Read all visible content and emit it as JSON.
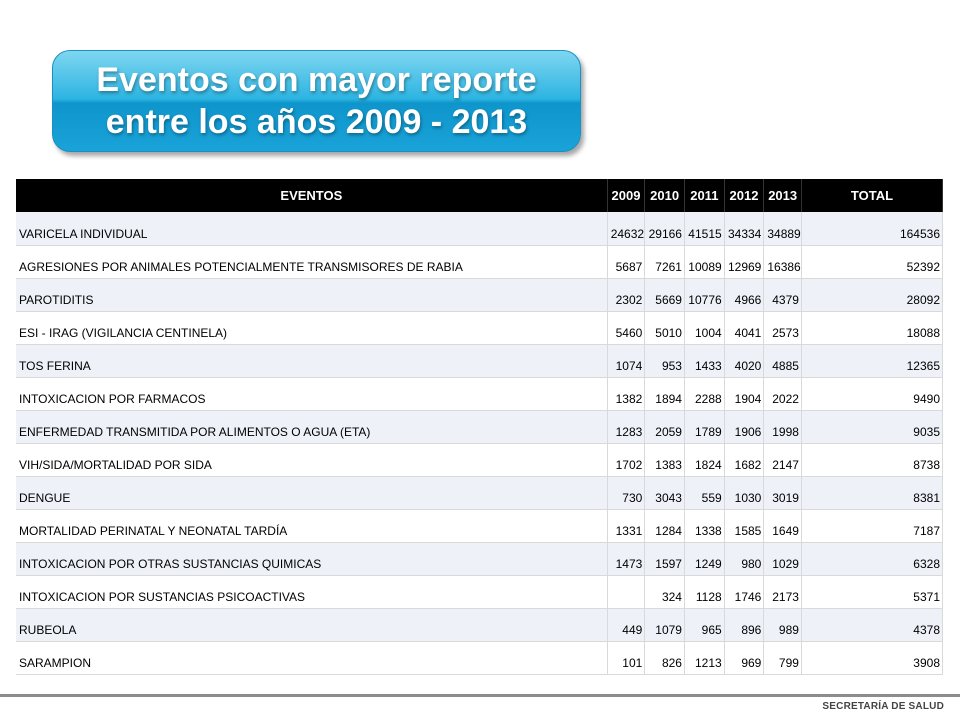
{
  "title": {
    "line1": "Eventos con mayor reporte",
    "line2": "entre los años 2009 - 2013"
  },
  "table": {
    "headers": [
      "EVENTOS",
      "2009",
      "2010",
      "2011",
      "2012",
      "2013",
      "TOTAL"
    ],
    "rows": [
      [
        "VARICELA INDIVIDUAL",
        "24632",
        "29166",
        "41515",
        "34334",
        "34889",
        "164536"
      ],
      [
        "AGRESIONES POR ANIMALES POTENCIALMENTE TRANSMISORES DE RABIA",
        "5687",
        "7261",
        "10089",
        "12969",
        "16386",
        "52392"
      ],
      [
        "PAROTIDITIS",
        "2302",
        "5669",
        "10776",
        "4966",
        "4379",
        "28092"
      ],
      [
        "ESI - IRAG (VIGILANCIA CENTINELA)",
        "5460",
        "5010",
        "1004",
        "4041",
        "2573",
        "18088"
      ],
      [
        "TOS FERINA",
        "1074",
        "953",
        "1433",
        "4020",
        "4885",
        "12365"
      ],
      [
        "INTOXICACION POR FARMACOS",
        "1382",
        "1894",
        "2288",
        "1904",
        "2022",
        "9490"
      ],
      [
        "ENFERMEDAD TRANSMITIDA POR ALIMENTOS O AGUA (ETA)",
        "1283",
        "2059",
        "1789",
        "1906",
        "1998",
        "9035"
      ],
      [
        "VIH/SIDA/MORTALIDAD POR SIDA",
        "1702",
        "1383",
        "1824",
        "1682",
        "2147",
        "8738"
      ],
      [
        "DENGUE",
        "730",
        "3043",
        "559",
        "1030",
        "3019",
        "8381"
      ],
      [
        "MORTALIDAD PERINATAL Y NEONATAL TARDÍA",
        "1331",
        "1284",
        "1338",
        "1585",
        "1649",
        "7187"
      ],
      [
        "INTOXICACION POR OTRAS SUSTANCIAS QUIMICAS",
        "1473",
        "1597",
        "1249",
        "980",
        "1029",
        "6328"
      ],
      [
        "INTOXICACION POR SUSTANCIAS PSICOACTIVAS",
        "",
        "324",
        "1128",
        "1746",
        "2173",
        "5371"
      ],
      [
        "RUBEOLA",
        "449",
        "1079",
        "965",
        "896",
        "989",
        "4378"
      ],
      [
        "SARAMPION",
        "101",
        "826",
        "1213",
        "969",
        "799",
        "3908"
      ]
    ]
  },
  "footer": {
    "text": "SECRETARÍA DE SALUD"
  }
}
